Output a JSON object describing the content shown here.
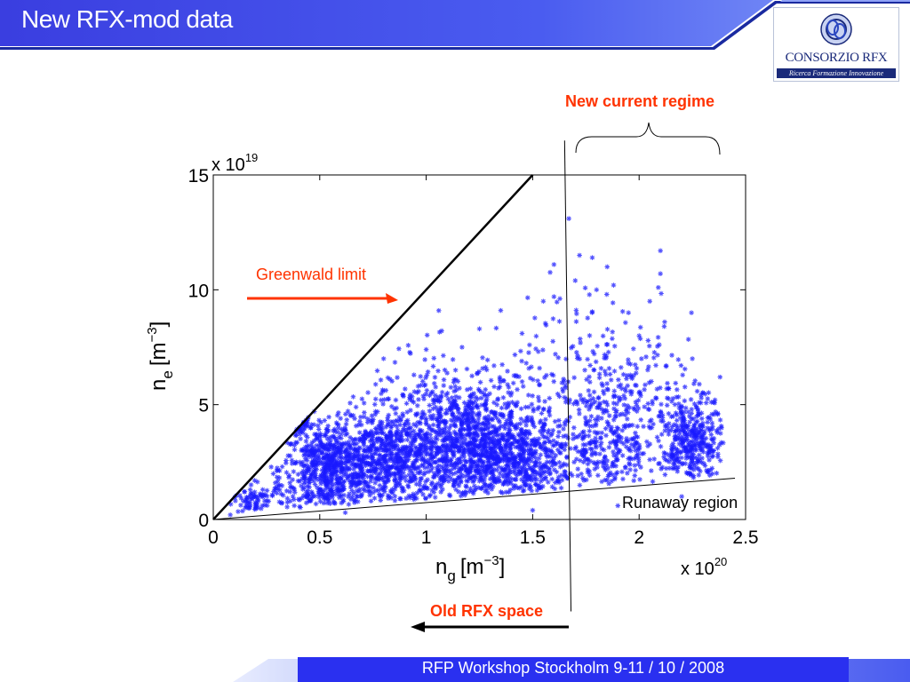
{
  "slide": {
    "title": "New RFX-mod data",
    "footer": "RFP Workshop Stockholm 9-11 / 10 / 2008"
  },
  "logo": {
    "name": "CONSORZIO RFX",
    "tagline": "Ricerca Formazione Innovazione"
  },
  "annotations": {
    "new_current_regime": "New current regime",
    "greenwald_limit": "Greenwald limit",
    "runaway_region": "Runaway region",
    "old_rfx_space": "Old RFX space"
  },
  "colors": {
    "title_bar": "#3a3ee0",
    "accent_line": "#1a2aa0",
    "points": "#1a1aff",
    "annotation": "#ff3300"
  },
  "chart_data": {
    "type": "scatter",
    "xlabel": "n_g [m^-3]",
    "xlabel_base": "n",
    "xlabel_sub": "g",
    "xlabel_unit": "[m",
    "xlabel_exp": "−3",
    "xlabel_close": "]",
    "ylabel_base": "n",
    "ylabel_sub": "e",
    "ylabel_unit": "[m",
    "ylabel_exp": "−3",
    "ylabel_close": "]",
    "x_multiplier": "x 10",
    "x_multiplier_exp": "20",
    "y_multiplier": "x 10",
    "y_multiplier_exp": "19",
    "xlim": [
      0,
      2.5
    ],
    "ylim": [
      0,
      15
    ],
    "x_ticks": [
      "0",
      "0.5",
      "1",
      "1.5",
      "2",
      "2.5"
    ],
    "y_ticks": [
      "0",
      "5",
      "10",
      "15"
    ],
    "greenwald_line": {
      "x": [
        0,
        1.5
      ],
      "y": [
        0,
        15
      ]
    },
    "runaway_line": {
      "x": [
        0,
        2.45
      ],
      "y": [
        0,
        1.8
      ]
    },
    "old_new_boundary": {
      "x": [
        1.65,
        1.68
      ],
      "y_top": 16.5,
      "y_bottom": -4
    },
    "point_clusters": [
      {
        "x": 0.55,
        "y": 2.2,
        "sx": 0.12,
        "sy": 1.0,
        "n": 700
      },
      {
        "x": 0.85,
        "y": 2.6,
        "sx": 0.13,
        "sy": 1.1,
        "n": 650
      },
      {
        "x": 1.2,
        "y": 3.0,
        "sx": 0.14,
        "sy": 1.2,
        "n": 750
      },
      {
        "x": 1.45,
        "y": 2.7,
        "sx": 0.12,
        "sy": 1.1,
        "n": 450
      },
      {
        "x": 1.15,
        "y": 4.8,
        "sx": 0.22,
        "sy": 1.3,
        "n": 300
      },
      {
        "x": 1.85,
        "y": 3.2,
        "sx": 0.12,
        "sy": 1.3,
        "n": 300
      },
      {
        "x": 2.25,
        "y": 3.3,
        "sx": 0.07,
        "sy": 1.0,
        "n": 350
      },
      {
        "x": 1.75,
        "y": 6.5,
        "sx": 0.2,
        "sy": 1.8,
        "n": 150
      },
      {
        "x": 2.0,
        "y": 5.5,
        "sx": 0.15,
        "sy": 1.5,
        "n": 120
      },
      {
        "x": 0.4,
        "y": 4.3,
        "sx": 0.02,
        "sy": 0.2,
        "n": 30
      },
      {
        "x": 0.2,
        "y": 0.8,
        "sx": 0.07,
        "sy": 0.4,
        "n": 80
      }
    ],
    "outliers": [
      [
        1.67,
        13.1
      ],
      [
        1.6,
        11.1
      ],
      [
        1.72,
        11.5
      ],
      [
        1.78,
        11.4
      ],
      [
        1.85,
        11.0
      ],
      [
        2.1,
        11.7
      ],
      [
        2.1,
        10.7
      ],
      [
        2.09,
        10.1
      ],
      [
        1.7,
        10.4
      ],
      [
        1.8,
        10.0
      ],
      [
        1.88,
        10.2
      ],
      [
        2.05,
        9.5
      ],
      [
        1.35,
        9.1
      ],
      [
        1.55,
        9.5
      ],
      [
        1.6,
        9.7
      ],
      [
        1.95,
        9.0
      ],
      [
        2.12,
        8.6
      ],
      [
        1.25,
        8.3
      ],
      [
        1.45,
        8.1
      ],
      [
        2.0,
        8.0
      ],
      [
        2.25,
        7.0
      ],
      [
        2.38,
        6.2
      ],
      [
        2.35,
        5.1
      ],
      [
        1.0,
        7.4
      ],
      [
        0.8,
        7.0
      ],
      [
        0.97,
        1.5
      ],
      [
        0.78,
        1.1
      ],
      [
        1.5,
        0.4
      ],
      [
        2.2,
        1.0
      ],
      [
        1.9,
        0.6
      ],
      [
        0.62,
        0.3
      ],
      [
        0.08,
        0.2
      ],
      [
        0.15,
        0.5
      ]
    ],
    "grid": false
  }
}
